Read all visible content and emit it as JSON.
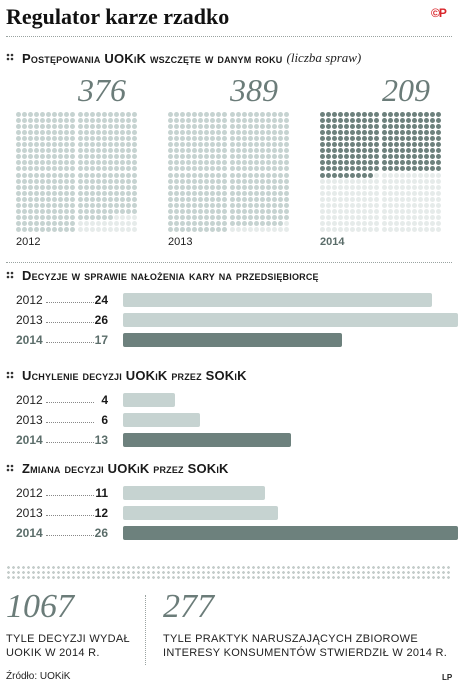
{
  "header": {
    "title": "Regulator karze rzadko",
    "logo": "©P"
  },
  "colors": {
    "light": "#c6d3d1",
    "dark": "#6d817d",
    "empty": "#e6ebea",
    "accent": "#5b6d6a"
  },
  "chart_data": [
    {
      "type": "waffle",
      "title": "Postępowania UOKiK wszczęte w danym roku",
      "note": "(liczba spraw)",
      "series": [
        {
          "year": "2012",
          "value": 376,
          "value_label": "376"
        },
        {
          "year": "2013",
          "value": 389,
          "value_label": "389"
        },
        {
          "year": "2014",
          "value": 209,
          "value_label": "209"
        }
      ]
    },
    {
      "type": "bar",
      "title": "Decyzje w sprawie nałożenia kary na przedsiębiorcę",
      "categories": [
        "2012",
        "2013",
        "2014"
      ],
      "values": [
        24,
        26,
        17
      ],
      "value_labels": [
        "24",
        "26",
        "17"
      ],
      "xlim": [
        0,
        26
      ]
    },
    {
      "type": "bar",
      "title": "Uchylenie decyzji UOKiK przez SOKiK",
      "categories": [
        "2012",
        "2013",
        "2014"
      ],
      "values": [
        4,
        6,
        13
      ],
      "value_labels": [
        "4",
        "6",
        "13"
      ],
      "xlim": [
        0,
        26
      ]
    },
    {
      "type": "bar",
      "title": "Zmiana decyzji UOKiK przez SOKiK",
      "categories": [
        "2012",
        "2013",
        "2014"
      ],
      "values": [
        11,
        12,
        26
      ],
      "value_labels": [
        "11",
        "12",
        "26"
      ],
      "xlim": [
        0,
        26
      ]
    }
  ],
  "summary": [
    {
      "number": "1067",
      "text1": "TYLE DECYZJI WYDAŁ",
      "text2": "UOKIK W 2014 R."
    },
    {
      "number": "277",
      "text1": "TYLE PRAKTYK NARUSZAJĄCYCH ZBIOROWE",
      "text2": "INTERESY KONSUMENTÓW STWIERDZIŁ W 2014 R."
    }
  ],
  "footer": {
    "source": "Źródło: UOKiK",
    "credit": "LP"
  }
}
